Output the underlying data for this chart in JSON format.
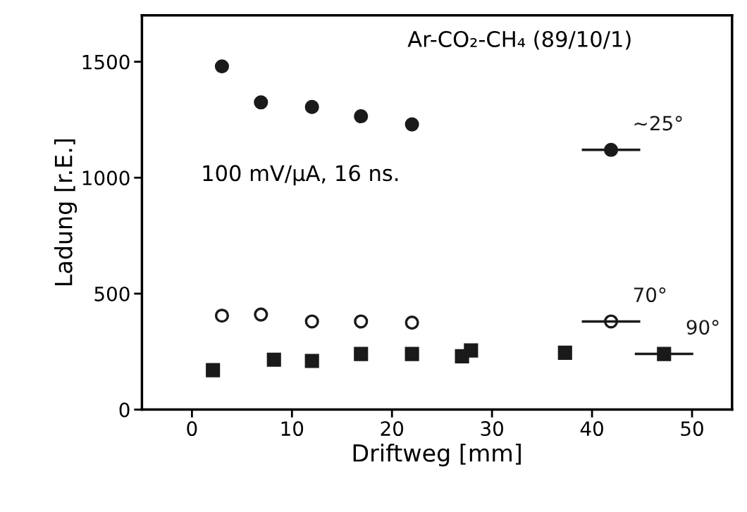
{
  "chart_data": {
    "type": "scatter",
    "xlabel": "Driftweg [mm]",
    "ylabel": "Ladung [r.E.]",
    "xlim": [
      -5,
      54
    ],
    "ylim": [
      0,
      1700
    ],
    "xticks": [
      0,
      10,
      20,
      30,
      40,
      50
    ],
    "yticks": [
      0,
      500,
      1000,
      1500
    ],
    "grid": false,
    "legend": false,
    "annotations": [
      "Ar-CO₂-CH₄ (89/10/1)",
      "100 mV/μA, 16 ns."
    ],
    "series": [
      {
        "name": "~25°",
        "color": "#1a1a1a",
        "marker": "circle",
        "x": [
          3,
          6.9,
          12,
          16.9,
          22,
          41.9
        ],
        "values": [
          1480,
          1325,
          1305,
          1265,
          1230,
          1120
        ],
        "xerrors": [
          null,
          null,
          null,
          null,
          null,
          2.8
        ]
      },
      {
        "name": "70°",
        "color": "#1a1a1a",
        "marker": "circle",
        "x": [
          3,
          6.9,
          12,
          16.9,
          22,
          41.9
        ],
        "values": [
          405,
          410,
          380,
          380,
          375,
          380
        ],
        "xerrors": [
          null,
          null,
          null,
          null,
          null,
          2.8
        ]
      },
      {
        "name": "90°",
        "color": "#1a1a1a",
        "marker": "square",
        "x": [
          2.1,
          8.2,
          12,
          16.9,
          22,
          27,
          27.9,
          37.3,
          47.2
        ],
        "values": [
          170,
          215,
          210,
          240,
          240,
          230,
          255,
          245,
          240
        ],
        "xerrors": [
          null,
          null,
          null,
          null,
          null,
          null,
          null,
          null,
          2.8
        ]
      }
    ]
  }
}
